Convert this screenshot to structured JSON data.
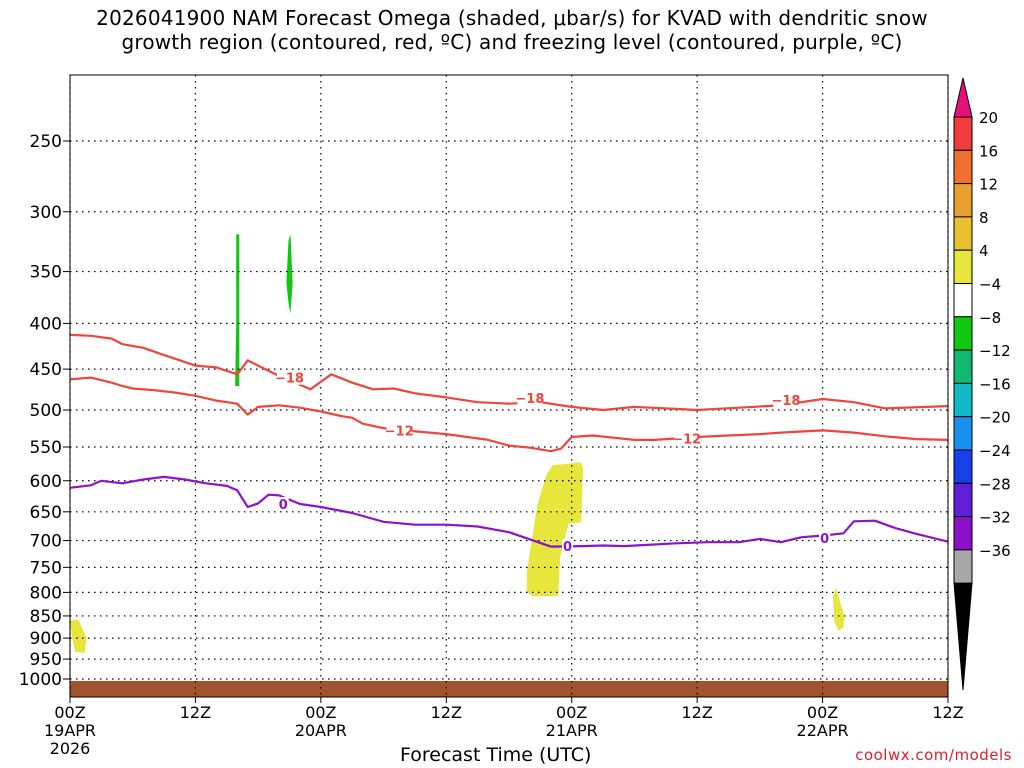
{
  "title": {
    "line1": "2026041900 NAM Forecast Omega (shaded, μbar/s) for KVAD with dendritic snow",
    "line2": "growth region (contoured, red, ºC) and freezing level (contoured, purple, ºC)"
  },
  "credit": "coolwx.com/models",
  "chart_data": {
    "type": "time-height cross section",
    "xlabel": "Forecast Time (UTC)",
    "x_ticks": [
      {
        "hour": 0,
        "label": "00Z",
        "sub": "19APR",
        "sub2": "2026"
      },
      {
        "hour": 12,
        "label": "12Z"
      },
      {
        "hour": 24,
        "label": "00Z",
        "sub": "20APR"
      },
      {
        "hour": 36,
        "label": "12Z"
      },
      {
        "hour": 48,
        "label": "00Z",
        "sub": "21APR"
      },
      {
        "hour": 60,
        "label": "12Z"
      },
      {
        "hour": 72,
        "label": "00Z",
        "sub": "22APR"
      },
      {
        "hour": 84,
        "label": "12Z"
      }
    ],
    "xlim": [
      0,
      84
    ],
    "y_axis": "pressure (hPa)",
    "y_ticks": [
      250,
      300,
      350,
      400,
      450,
      500,
      550,
      600,
      650,
      700,
      750,
      800,
      850,
      900,
      950,
      1000
    ],
    "ylim": [
      1050,
      200
    ],
    "grid": true,
    "colorbar": {
      "units": "μbar/s",
      "labels": [
        "20",
        "16",
        "12",
        "8",
        "4",
        "−4",
        "−8",
        "−12",
        "−16",
        "−20",
        "−24",
        "−28",
        "−32",
        "−36"
      ],
      "colors": [
        "#e8107c",
        "#f03c3c",
        "#f07030",
        "#e8a030",
        "#e8c030",
        "#e6e63c",
        "#ffffff",
        "#10c810",
        "#10b870",
        "#10b8c8",
        "#1890f0",
        "#1840e8",
        "#6020d8",
        "#8c10c8",
        "#a8a8a8",
        "#000000"
      ]
    },
    "contours": [
      {
        "name": "-18 (upper)",
        "color": "#f0443c",
        "label": "−18",
        "points": [
          [
            0,
            412
          ],
          [
            2,
            413
          ],
          [
            4,
            416
          ],
          [
            5,
            422
          ],
          [
            7,
            426
          ],
          [
            9,
            434
          ],
          [
            12,
            446
          ],
          [
            14,
            448
          ],
          [
            16,
            456
          ],
          [
            17,
            440
          ],
          [
            18,
            446
          ],
          [
            20,
            458
          ],
          [
            21,
            463
          ],
          [
            23,
            474
          ],
          [
            25,
            456
          ],
          [
            27,
            466
          ],
          [
            29,
            474
          ],
          [
            31,
            473
          ],
          [
            33,
            479
          ],
          [
            36,
            484
          ],
          [
            39,
            490
          ],
          [
            42,
            492
          ],
          [
            45,
            490
          ],
          [
            48,
            496
          ],
          [
            51,
            500
          ],
          [
            54,
            496
          ],
          [
            57,
            498
          ],
          [
            60,
            500
          ],
          [
            64,
            497
          ],
          [
            68,
            494
          ],
          [
            72,
            486
          ],
          [
            75,
            490
          ],
          [
            78,
            498
          ],
          [
            84,
            495
          ]
        ]
      },
      {
        "name": "-18 (lower)",
        "color": "#f0443c",
        "points": [
          [
            0,
            462
          ],
          [
            2,
            460
          ],
          [
            4,
            466
          ],
          [
            5,
            470
          ],
          [
            6,
            473
          ],
          [
            8,
            475
          ],
          [
            10,
            478
          ],
          [
            12,
            482
          ],
          [
            14,
            488
          ],
          [
            16,
            492
          ],
          [
            17,
            506
          ],
          [
            18,
            496
          ],
          [
            20,
            494
          ],
          [
            22,
            497
          ],
          [
            24,
            502
          ],
          [
            26,
            508
          ],
          [
            27,
            510
          ],
          [
            28,
            518
          ],
          [
            30,
            524
          ],
          [
            32,
            527
          ],
          [
            36,
            532
          ],
          [
            40,
            540
          ],
          [
            42,
            548
          ],
          [
            44,
            551
          ],
          [
            46,
            556
          ],
          [
            47,
            552
          ],
          [
            48,
            536
          ],
          [
            50,
            534
          ],
          [
            52,
            537
          ],
          [
            54,
            540
          ],
          [
            56,
            540
          ],
          [
            60,
            536
          ],
          [
            63,
            534
          ],
          [
            66,
            532
          ],
          [
            68,
            530
          ],
          [
            72,
            527
          ],
          [
            75,
            530
          ],
          [
            78,
            535
          ],
          [
            81,
            539
          ],
          [
            84,
            540
          ]
        ]
      },
      {
        "name": "0 freezing level",
        "color": "#8a14cc",
        "label": "0",
        "points": [
          [
            0,
            611
          ],
          [
            2,
            607
          ],
          [
            3,
            600
          ],
          [
            5,
            604
          ],
          [
            7,
            598
          ],
          [
            9,
            594
          ],
          [
            11,
            598
          ],
          [
            13,
            604
          ],
          [
            15,
            608
          ],
          [
            16,
            615
          ],
          [
            17,
            642
          ],
          [
            18,
            636
          ],
          [
            19,
            622
          ],
          [
            20,
            623
          ],
          [
            22,
            637
          ],
          [
            24,
            642
          ],
          [
            27,
            652
          ],
          [
            30,
            667
          ],
          [
            33,
            672
          ],
          [
            36,
            672
          ],
          [
            39,
            675
          ],
          [
            42,
            685
          ],
          [
            46,
            711
          ],
          [
            49,
            710
          ],
          [
            51,
            709
          ],
          [
            53,
            710
          ],
          [
            55,
            708
          ],
          [
            58,
            705
          ],
          [
            61,
            703
          ],
          [
            64,
            703
          ],
          [
            66,
            697
          ],
          [
            68,
            703
          ],
          [
            70,
            694
          ],
          [
            72,
            691
          ],
          [
            74,
            687
          ],
          [
            75,
            666
          ],
          [
            77,
            665
          ],
          [
            79,
            678
          ],
          [
            81,
            688
          ],
          [
            84,
            702
          ]
        ]
      }
    ],
    "contour_labels": [
      {
        "text": "−18",
        "hour": 21,
        "p": 460,
        "color": "#f0443c"
      },
      {
        "text": "−18",
        "hour": 44,
        "p": 485,
        "color": "#f0443c"
      },
      {
        "text": "−18",
        "hour": 68.5,
        "p": 487,
        "color": "#f0443c"
      },
      {
        "text": "−12",
        "hour": 31.5,
        "p": 527,
        "color": "#f0443c"
      },
      {
        "text": "−12",
        "hour": 59,
        "p": 538,
        "color": "#f0443c"
      },
      {
        "text": "0",
        "hour": 20.4,
        "p": 637,
        "color": "#8a14cc"
      },
      {
        "text": "0",
        "hour": 47.6,
        "p": 710,
        "color": "#8a14cc"
      },
      {
        "text": "0",
        "hour": 72.2,
        "p": 695,
        "color": "#8a14cc"
      }
    ],
    "shaded_regions": [
      {
        "name": "omega -4 to -8 column A",
        "color": "#10c810",
        "points": [
          [
            15.9,
            318
          ],
          [
            16.2,
            318
          ],
          [
            16.2,
            470
          ],
          [
            15.8,
            470
          ],
          [
            15.9,
            400
          ]
        ]
      },
      {
        "name": "omega -4 to -8 column B",
        "color": "#10c810",
        "points": [
          [
            20.9,
            323
          ],
          [
            21.1,
            318
          ],
          [
            21.3,
            360
          ],
          [
            21.1,
            390
          ],
          [
            20.9,
            380
          ],
          [
            20.7,
            360
          ]
        ]
      },
      {
        "name": "omega 4 to 8 area 1",
        "color": "#e6e63c",
        "points": [
          [
            0,
            860
          ],
          [
            0.8,
            858
          ],
          [
            1.6,
            900
          ],
          [
            1.4,
            935
          ],
          [
            0.5,
            932
          ],
          [
            0.2,
            900
          ]
        ]
      },
      {
        "name": "omega 4 to 8 area 2",
        "color": "#e6e63c",
        "points": [
          [
            43.7,
            760
          ],
          [
            44.7,
            640
          ],
          [
            45.6,
            590
          ],
          [
            46.2,
            576
          ],
          [
            47.2,
            575
          ],
          [
            48.8,
            572
          ],
          [
            49.1,
            580
          ],
          [
            48.9,
            668
          ],
          [
            47.7,
            670
          ],
          [
            46.9,
            730
          ],
          [
            46.7,
            807
          ],
          [
            45.9,
            808
          ],
          [
            44.3,
            808
          ],
          [
            43.7,
            800
          ]
        ]
      },
      {
        "name": "omega 4 to 8 area 3",
        "color": "#e6e63c",
        "points": [
          [
            73.3,
            790
          ],
          [
            73.6,
            815
          ],
          [
            74.1,
            850
          ],
          [
            74.0,
            876
          ],
          [
            73.5,
            883
          ],
          [
            73.1,
            860
          ],
          [
            73.0,
            808
          ]
        ]
      }
    ],
    "terrain": {
      "color": "#a0522d",
      "top_p": 1005,
      "label": "surface"
    }
  }
}
